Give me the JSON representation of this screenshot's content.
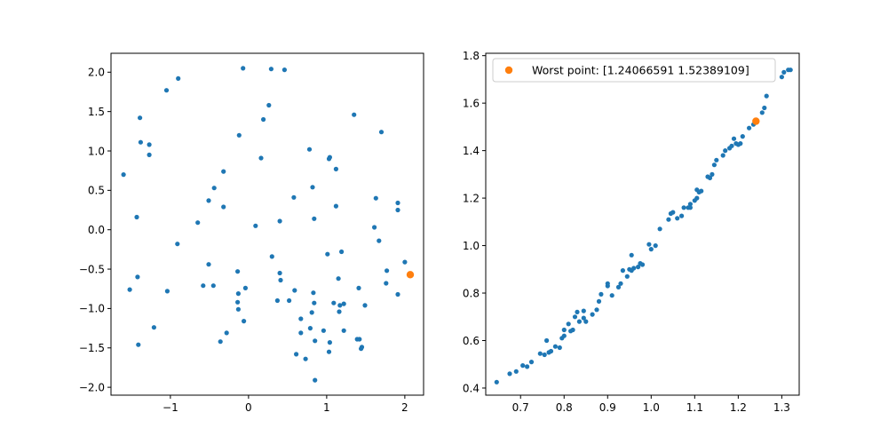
{
  "colors": {
    "points": "#1f77b4",
    "highlight": "#ff7f0e"
  },
  "chart_data": [
    {
      "type": "scatter",
      "title": "",
      "xlabel": "",
      "ylabel": "",
      "xlim": [
        -1.76,
        2.24
      ],
      "ylim": [
        -2.1,
        2.24
      ],
      "xticks": [
        -1,
        0,
        1,
        2
      ],
      "xtick_labels": [
        "−1",
        "0",
        "1",
        "2"
      ],
      "yticks": [
        -2.0,
        -1.5,
        -1.0,
        -0.5,
        0.0,
        0.5,
        1.0,
        1.5,
        2.0
      ],
      "ytick_labels": [
        "−2.0",
        "−1.5",
        "−1.0",
        "−0.5",
        "0.0",
        "0.5",
        "1.0",
        "1.5",
        "2.0"
      ],
      "grid": false,
      "series": [
        {
          "points": [
            [
              -1.6,
              0.7
            ],
            [
              -1.52,
              -0.76
            ],
            [
              -1.43,
              0.16
            ],
            [
              -1.42,
              -0.6
            ],
            [
              -1.41,
              -1.46
            ],
            [
              -1.39,
              1.42
            ],
            [
              -1.38,
              1.11
            ],
            [
              -1.27,
              1.08
            ],
            [
              -1.27,
              0.95
            ],
            [
              -1.21,
              -1.24
            ],
            [
              -1.05,
              1.77
            ],
            [
              -1.04,
              -0.78
            ],
            [
              -0.9,
              1.92
            ],
            [
              -0.91,
              -0.18
            ],
            [
              -0.65,
              0.09
            ],
            [
              -0.58,
              -0.71
            ],
            [
              -0.51,
              -0.44
            ],
            [
              -0.51,
              0.37
            ],
            [
              -0.44,
              0.53
            ],
            [
              -0.45,
              -0.71
            ],
            [
              -0.36,
              -1.42
            ],
            [
              -0.32,
              0.74
            ],
            [
              -0.32,
              0.29
            ],
            [
              -0.28,
              -1.31
            ],
            [
              -0.14,
              -0.53
            ],
            [
              -0.13,
              -0.81
            ],
            [
              -0.14,
              -0.92
            ],
            [
              -0.13,
              -1.01
            ],
            [
              -0.12,
              1.2
            ],
            [
              -0.07,
              2.05
            ],
            [
              -0.06,
              -1.16
            ],
            [
              -0.04,
              -0.74
            ],
            [
              0.09,
              0.05
            ],
            [
              0.16,
              0.91
            ],
            [
              0.19,
              1.4
            ],
            [
              0.26,
              1.58
            ],
            [
              0.29,
              2.04
            ],
            [
              0.3,
              -0.34
            ],
            [
              0.37,
              -0.9
            ],
            [
              0.4,
              0.11
            ],
            [
              0.4,
              -0.55
            ],
            [
              0.41,
              -0.64
            ],
            [
              0.46,
              2.03
            ],
            [
              0.52,
              -0.9
            ],
            [
              0.58,
              0.41
            ],
            [
              0.59,
              -0.77
            ],
            [
              0.61,
              -1.58
            ],
            [
              0.67,
              -1.13
            ],
            [
              0.67,
              -1.31
            ],
            [
              0.73,
              -1.64
            ],
            [
              0.78,
              1.02
            ],
            [
              0.79,
              -1.25
            ],
            [
              0.81,
              -1.05
            ],
            [
              0.82,
              0.54
            ],
            [
              0.84,
              0.14
            ],
            [
              0.83,
              -0.8
            ],
            [
              0.84,
              -0.93
            ],
            [
              0.85,
              -1.91
            ],
            [
              0.85,
              -1.41
            ],
            [
              0.96,
              -1.28
            ],
            [
              1.01,
              -0.31
            ],
            [
              1.03,
              0.9
            ],
            [
              1.04,
              0.92
            ],
            [
              1.03,
              -1.55
            ],
            [
              1.04,
              -1.43
            ],
            [
              1.09,
              -0.93
            ],
            [
              1.12,
              0.77
            ],
            [
              1.12,
              0.3
            ],
            [
              1.15,
              -0.62
            ],
            [
              1.16,
              -1.04
            ],
            [
              1.17,
              -0.96
            ],
            [
              1.19,
              -0.28
            ],
            [
              1.22,
              -0.94
            ],
            [
              1.22,
              -1.28
            ],
            [
              1.35,
              1.46
            ],
            [
              1.39,
              -1.39
            ],
            [
              1.42,
              -1.39
            ],
            [
              1.41,
              -0.74
            ],
            [
              1.44,
              -1.51
            ],
            [
              1.45,
              -1.49
            ],
            [
              1.49,
              -0.96
            ],
            [
              1.61,
              0.03
            ],
            [
              1.63,
              0.4
            ],
            [
              1.67,
              -0.14
            ],
            [
              1.7,
              1.24
            ],
            [
              1.77,
              -0.52
            ],
            [
              1.76,
              -0.68
            ],
            [
              1.91,
              0.34
            ],
            [
              1.91,
              0.25
            ],
            [
              1.91,
              -0.82
            ],
            [
              2.0,
              -0.41
            ]
          ]
        },
        {
          "points": [
            [
              2.07,
              -0.57
            ]
          ]
        }
      ]
    },
    {
      "type": "scatter",
      "title": "",
      "xlabel": "",
      "ylabel": "",
      "xlim": [
        0.62,
        1.34
      ],
      "ylim": [
        0.37,
        1.81
      ],
      "xticks": [
        0.7,
        0.8,
        0.9,
        1.0,
        1.1,
        1.2,
        1.3
      ],
      "xtick_labels": [
        "0.7",
        "0.8",
        "0.9",
        "1.0",
        "1.1",
        "1.2",
        "1.3"
      ],
      "yticks": [
        0.4,
        0.6,
        0.8,
        1.0,
        1.2,
        1.4,
        1.6,
        1.8
      ],
      "ytick_labels": [
        "0.4",
        "0.6",
        "0.8",
        "1.0",
        "1.2",
        "1.4",
        "1.6",
        "1.8"
      ],
      "grid": false,
      "legend_position": "top-right",
      "legend_label": "Worst point: [1.24066591 1.52389109]",
      "series": [
        {
          "points": [
            [
              0.645,
              0.425
            ],
            [
              0.675,
              0.46
            ],
            [
              0.69,
              0.47
            ],
            [
              0.705,
              0.495
            ],
            [
              0.715,
              0.49
            ],
            [
              0.725,
              0.51
            ],
            [
              0.745,
              0.545
            ],
            [
              0.755,
              0.54
            ],
            [
              0.765,
              0.55
            ],
            [
              0.76,
              0.6
            ],
            [
              0.77,
              0.555
            ],
            [
              0.78,
              0.575
            ],
            [
              0.79,
              0.57
            ],
            [
              0.795,
              0.61
            ],
            [
              0.8,
              0.62
            ],
            [
              0.8,
              0.645
            ],
            [
              0.81,
              0.67
            ],
            [
              0.815,
              0.64
            ],
            [
              0.82,
              0.645
            ],
            [
              0.825,
              0.7
            ],
            [
              0.83,
              0.72
            ],
            [
              0.835,
              0.68
            ],
            [
              0.845,
              0.695
            ],
            [
              0.845,
              0.725
            ],
            [
              0.85,
              0.68
            ],
            [
              0.865,
              0.71
            ],
            [
              0.875,
              0.73
            ],
            [
              0.88,
              0.765
            ],
            [
              0.885,
              0.795
            ],
            [
              0.9,
              0.83
            ],
            [
              0.9,
              0.84
            ],
            [
              0.91,
              0.79
            ],
            [
              0.925,
              0.825
            ],
            [
              0.93,
              0.84
            ],
            [
              0.935,
              0.895
            ],
            [
              0.945,
              0.87
            ],
            [
              0.95,
              0.9
            ],
            [
              0.955,
              0.895
            ],
            [
              0.96,
              0.905
            ],
            [
              0.955,
              0.96
            ],
            [
              0.97,
              0.91
            ],
            [
              0.98,
              0.92
            ],
            [
              0.975,
              0.925
            ],
            [
              0.995,
              1.005
            ],
            [
              1.0,
              0.985
            ],
            [
              1.01,
              1.0
            ],
            [
              1.02,
              1.07
            ],
            [
              1.04,
              1.11
            ],
            [
              1.045,
              1.135
            ],
            [
              1.05,
              1.14
            ],
            [
              1.06,
              1.115
            ],
            [
              1.07,
              1.125
            ],
            [
              1.075,
              1.16
            ],
            [
              1.085,
              1.16
            ],
            [
              1.09,
              1.175
            ],
            [
              1.09,
              1.16
            ],
            [
              1.1,
              1.19
            ],
            [
              1.105,
              1.2
            ],
            [
              1.105,
              1.235
            ],
            [
              1.11,
              1.225
            ],
            [
              1.115,
              1.23
            ],
            [
              1.13,
              1.29
            ],
            [
              1.135,
              1.285
            ],
            [
              1.14,
              1.3
            ],
            [
              1.145,
              1.34
            ],
            [
              1.15,
              1.36
            ],
            [
              1.165,
              1.38
            ],
            [
              1.17,
              1.4
            ],
            [
              1.18,
              1.41
            ],
            [
              1.185,
              1.42
            ],
            [
              1.19,
              1.45
            ],
            [
              1.195,
              1.43
            ],
            [
              1.2,
              1.425
            ],
            [
              1.205,
              1.43
            ],
            [
              1.21,
              1.46
            ],
            [
              1.225,
              1.495
            ],
            [
              1.235,
              1.51
            ],
            [
              1.255,
              1.56
            ],
            [
              1.26,
              1.58
            ],
            [
              1.265,
              1.63
            ],
            [
              1.3,
              1.71
            ],
            [
              1.305,
              1.73
            ],
            [
              1.315,
              1.74
            ],
            [
              1.32,
              1.74
            ]
          ]
        },
        {
          "points": [
            [
              1.24066591,
              1.52389109
            ]
          ]
        }
      ]
    }
  ]
}
